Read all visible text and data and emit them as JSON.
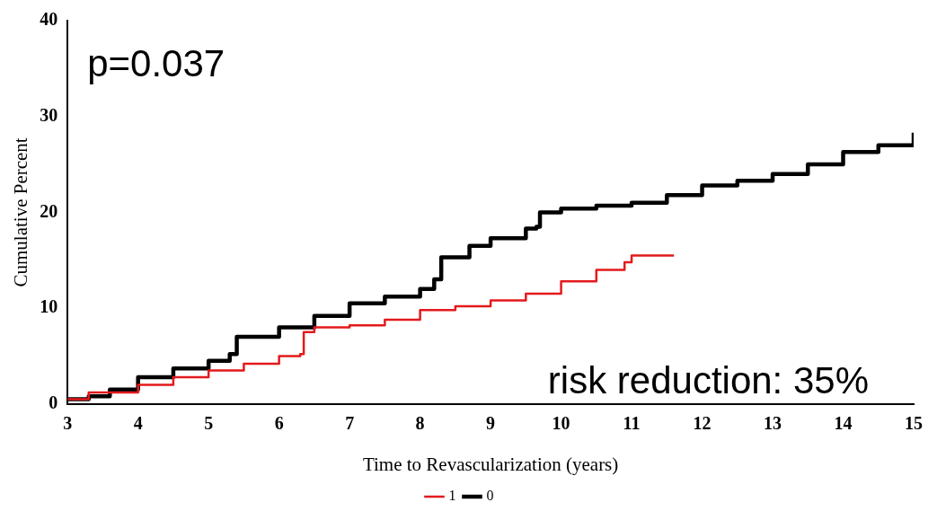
{
  "chart_data": {
    "type": "step",
    "xlabel": "Time to Revascularization (years)",
    "ylabel": "Cumulative Percent",
    "xlim": [
      3,
      15
    ],
    "xticks": [
      3,
      4,
      5,
      6,
      7,
      8,
      9,
      10,
      11,
      12,
      13,
      14,
      15
    ],
    "ylim": [
      0,
      40
    ],
    "yticks": [
      0,
      10,
      20,
      30,
      40
    ],
    "grid": false,
    "legend": "bottom",
    "marker": "none",
    "line_style": "solid",
    "annotations": [
      "p=0.037",
      "risk reduction: 35%"
    ],
    "series": [
      {
        "name": "0",
        "color": "#000000",
        "x": [
          3.0,
          3.3,
          3.6,
          4.0,
          4.5,
          5.0,
          5.3,
          5.4,
          6.0,
          6.5,
          7.0,
          7.5,
          8.0,
          8.2,
          8.3,
          8.7,
          9.0,
          9.5,
          9.65,
          9.7,
          10.0,
          10.5,
          11.0,
          11.5,
          12.0,
          12.5,
          13.0,
          13.5,
          14.0,
          14.5,
          15.0
        ],
        "values": [
          0.5,
          0.8,
          1.5,
          2.8,
          3.7,
          4.5,
          5.2,
          7.0,
          8.0,
          9.2,
          10.5,
          11.2,
          12.0,
          13.0,
          15.3,
          16.5,
          17.3,
          18.3,
          18.5,
          20.0,
          20.4,
          20.7,
          21.0,
          21.8,
          22.8,
          23.3,
          24.0,
          25.0,
          26.3,
          27.0,
          28.3
        ]
      },
      {
        "name": "1",
        "color": "#e31a1c",
        "x": [
          3.0,
          3.3,
          4.0,
          4.5,
          5.0,
          5.5,
          6.0,
          6.3,
          6.35,
          6.5,
          7.0,
          7.5,
          8.0,
          8.5,
          9.0,
          9.5,
          10.0,
          10.5,
          10.9,
          11.0,
          11.6
        ],
        "values": [
          0.5,
          1.2,
          2.0,
          2.8,
          3.5,
          4.2,
          5.0,
          5.2,
          7.5,
          8.0,
          8.2,
          8.8,
          9.8,
          10.2,
          10.8,
          11.5,
          12.8,
          14.0,
          14.8,
          15.5,
          15.5
        ]
      }
    ]
  }
}
